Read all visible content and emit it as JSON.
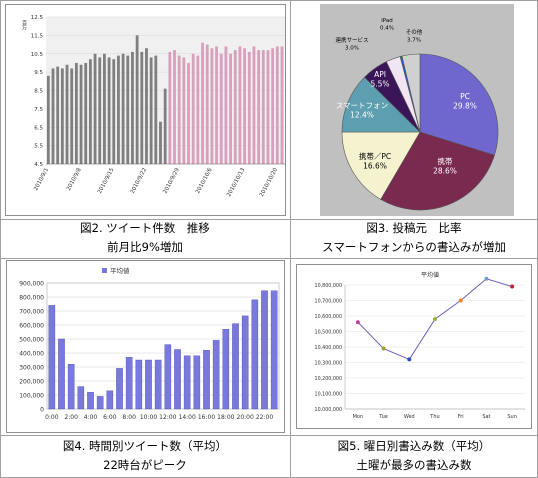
{
  "captions": {
    "fig2": {
      "line1": "図2. ツイート件数　推移",
      "line2": "前月比9%増加"
    },
    "fig3": {
      "line1": "図3. 投稿元　比率",
      "line2": "スマートフォンからの書込みが増加"
    },
    "fig4": {
      "line1": "図4. 時間別ツイート数（平均）",
      "line2": "22時台がピーク"
    },
    "fig5": {
      "line1": "図5. 曜日別書込み数（平均）",
      "line2": "土曜が最多の書込み数"
    }
  },
  "chart_data": [
    {
      "id": "fig2",
      "type": "bar",
      "ylabel": "百万",
      "ylim": [
        4.5,
        12.5
      ],
      "yticks": [
        "12.5",
        "11.5",
        "10.5",
        "9.5",
        "8.5",
        "7.5",
        "6.5",
        "5.5",
        "4.5"
      ],
      "xticks": [
        "2010/9/1",
        "2010/9/8",
        "2010/9/15",
        "2010/9/22",
        "2010/9/29",
        "2010/10/6",
        "2010/10/13",
        "2010/10/20",
        "2010/10/27"
      ],
      "series": [
        {
          "color": "#7f7f7f",
          "values": [
            9.3,
            9.7,
            9.8,
            9.7,
            9.9,
            9.7,
            10.0,
            9.9,
            10.0,
            10.2,
            10.5,
            10.3,
            10.5,
            10.3,
            10.2,
            10.4,
            10.5,
            10.4,
            10.6,
            11.5,
            10.6,
            10.8,
            10.3,
            10.4,
            6.8,
            8.6
          ]
        },
        {
          "color": "#d9a0bd",
          "values": [
            10.6,
            10.7,
            10.4,
            10.3,
            10.0,
            10.5,
            10.4,
            11.1,
            11.0,
            10.8,
            10.9,
            10.5,
            10.9,
            10.5,
            10.7,
            10.9,
            10.8,
            10.6,
            10.9,
            10.7,
            10.7,
            10.7,
            10.8,
            10.9,
            10.9,
            11.0
          ]
        }
      ]
    },
    {
      "id": "fig3",
      "type": "pie",
      "slices": [
        {
          "label": "PC",
          "pct_label": "29.8%",
          "value": 29.8,
          "color": "#6f66ce"
        },
        {
          "label": "携帯",
          "pct_label": "28.6%",
          "value": 28.6,
          "color": "#7a2a4f"
        },
        {
          "label": "携帯／PC",
          "pct_label": "16.6%",
          "value": 16.6,
          "color": "#f5f3cf"
        },
        {
          "label": "スマートフォン",
          "pct_label": "12.4%",
          "value": 12.4,
          "color": "#5d9fb0"
        },
        {
          "label": "API",
          "pct_label": "5.5%",
          "value": 5.5,
          "color": "#3a1659"
        },
        {
          "label": "連携サービス",
          "pct_label": "3.0%",
          "value": 3.0,
          "color": "#f0e5f0"
        },
        {
          "label": "iPad",
          "pct_label": "0.4%",
          "value": 0.4,
          "color": "#2060d0"
        },
        {
          "label": "その他",
          "pct_label": "3.7%",
          "value": 3.7,
          "color": "#d0d0d0"
        }
      ]
    },
    {
      "id": "fig4",
      "type": "bar",
      "legend": "平均値",
      "ylim": [
        0,
        900000
      ],
      "yticks": [
        "900,000",
        "800,000",
        "700,000",
        "600,000",
        "500,000",
        "400,000",
        "300,000",
        "200,000",
        "100,000",
        "0"
      ],
      "categories": [
        "0:00",
        "",
        "2:00",
        "",
        "4:00",
        "",
        "6:00",
        "",
        "8:00",
        "",
        "10:00",
        "",
        "12:00",
        "",
        "14:00",
        "",
        "16:00",
        "",
        "18:00",
        "",
        "20:00",
        "",
        "22:00",
        ""
      ],
      "values": [
        740000,
        500000,
        320000,
        160000,
        120000,
        90000,
        130000,
        290000,
        370000,
        350000,
        350000,
        350000,
        460000,
        425000,
        380000,
        380000,
        420000,
        490000,
        570000,
        610000,
        665000,
        780000,
        845000,
        845000
      ]
    },
    {
      "id": "fig5",
      "type": "line",
      "title": "平均値",
      "ylim": [
        10000000,
        10800000
      ],
      "yticks": [
        "10,800,000",
        "10,700,000",
        "10,600,000",
        "10,500,000",
        "10,400,000",
        "10,300,000",
        "10,200,000",
        "10,100,000",
        "10,000,000"
      ],
      "categories": [
        "Mon",
        "Tue",
        "Wed",
        "Thu",
        "Fri",
        "Sat",
        "Sun"
      ],
      "values": [
        10560000,
        10390000,
        10320000,
        10580000,
        10700000,
        10840000,
        10790000
      ],
      "marker_colors": [
        "#c03ca0",
        "#a0a020",
        "#3050c0",
        "#90b040",
        "#f08030",
        "#6aa0d0",
        "#c02030"
      ],
      "line_color": "#6a5cb8"
    }
  ]
}
